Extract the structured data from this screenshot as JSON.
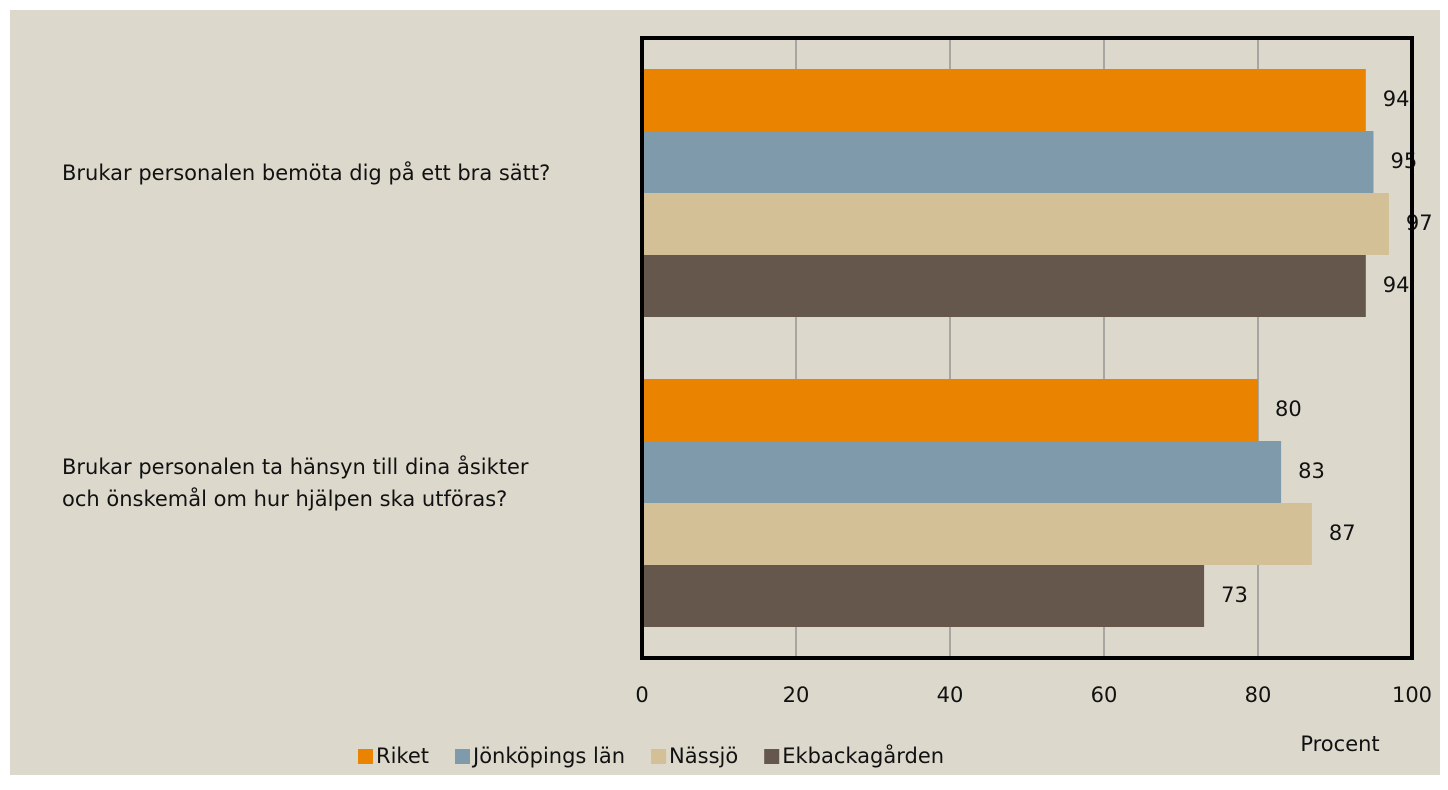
{
  "chart_data": {
    "type": "bar",
    "orientation": "horizontal",
    "categories": [
      "Brukar personalen bemöta dig på ett bra sätt?",
      "Brukar personalen ta hänsyn till dina åsikter och önskemål om hur hjälpen ska utföras?"
    ],
    "series": [
      {
        "name": "Riket",
        "color": "#e98300",
        "values": [
          94,
          80
        ]
      },
      {
        "name": "Jönköpings län",
        "color": "#7f9aab",
        "values": [
          95,
          83
        ]
      },
      {
        "name": "Nässjö",
        "color": "#d3c096",
        "values": [
          97,
          87
        ]
      },
      {
        "name": "Ekbackagården",
        "color": "#65574b",
        "values": [
          94,
          73
        ]
      }
    ],
    "xlabel": "Procent",
    "xlim": [
      0,
      100
    ],
    "xticks": [
      0,
      20,
      40,
      60,
      80,
      100
    ],
    "grid": true,
    "legend": "bottom"
  }
}
